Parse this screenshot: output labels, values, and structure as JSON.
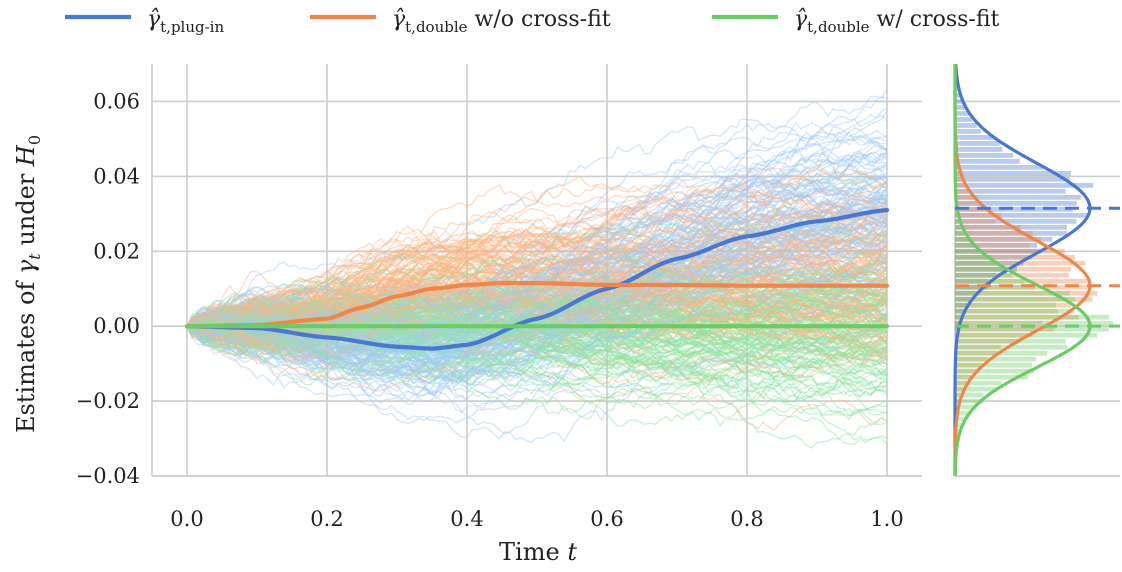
{
  "chart_data": [
    {
      "type": "line",
      "panel": "trajectories",
      "xlabel": "Time t",
      "ylabel": "Estimates of γ_t under H_0",
      "xlim": [
        -0.05,
        1.05
      ],
      "ylim": [
        -0.04,
        0.07
      ],
      "xticks": [
        "0.0",
        "0.2",
        "0.4",
        "0.6",
        "0.8",
        "1.0"
      ],
      "yticks": [
        "−0.04",
        "−0.02",
        "0.00",
        "0.02",
        "0.04",
        "0.06"
      ],
      "grid": true,
      "legend_position": "top",
      "series": [
        {
          "name": "γ̂_t,plug-in",
          "legend_main": "γ̂",
          "legend_sub": "t,plug-in",
          "legend_suffix": "",
          "color": "#4878d0",
          "light_color": "#a1c9f4",
          "x": [
            0,
            0.1,
            0.2,
            0.3,
            0.35,
            0.4,
            0.5,
            0.6,
            0.7,
            0.8,
            0.9,
            1.0
          ],
          "y": [
            0,
            -0.0005,
            -0.003,
            -0.0055,
            -0.006,
            -0.005,
            0.002,
            0.01,
            0.018,
            0.024,
            0.028,
            0.031
          ]
        },
        {
          "name": "γ̂_t,double w/o cross-fit",
          "legend_main": "γ̂",
          "legend_sub": "t,double",
          "legend_suffix": " w/o cross-fit",
          "color": "#ee854a",
          "light_color": "#ffb482",
          "x": [
            0,
            0.1,
            0.2,
            0.25,
            0.3,
            0.35,
            0.4,
            0.45,
            0.5,
            0.6,
            0.7,
            0.8,
            0.9,
            1.0
          ],
          "y": [
            0,
            0.0003,
            0.002,
            0.005,
            0.008,
            0.01,
            0.011,
            0.0115,
            0.0115,
            0.011,
            0.011,
            0.0108,
            0.0108,
            0.0108
          ]
        },
        {
          "name": "γ̂_t,double w/ cross-fit",
          "legend_main": "γ̂",
          "legend_sub": "t,double",
          "legend_suffix": " w/ cross-fit",
          "color": "#6acc64",
          "light_color": "#8de5a1",
          "x": [
            0,
            0.2,
            0.4,
            0.6,
            0.8,
            1.0
          ],
          "y": [
            0,
            0,
            0,
            0,
            0,
            0
          ]
        }
      ]
    },
    {
      "type": "histogram",
      "panel": "marginal-distribution",
      "orientation": "horizontal",
      "ylim": [
        -0.04,
        0.07
      ],
      "series": [
        {
          "name": "γ̂_t,plug-in",
          "color": "#4878d0",
          "mean": 0.0315,
          "sd": 0.012,
          "reference_line": 0.0315
        },
        {
          "name": "γ̂_t,double w/o cross-fit",
          "color": "#ee854a",
          "mean": 0.0108,
          "sd": 0.012,
          "reference_line": 0.0108
        },
        {
          "name": "γ̂_t,double w/ cross-fit",
          "color": "#6acc64",
          "mean": 0.0,
          "sd": 0.011,
          "reference_line": 0.0
        }
      ]
    }
  ]
}
